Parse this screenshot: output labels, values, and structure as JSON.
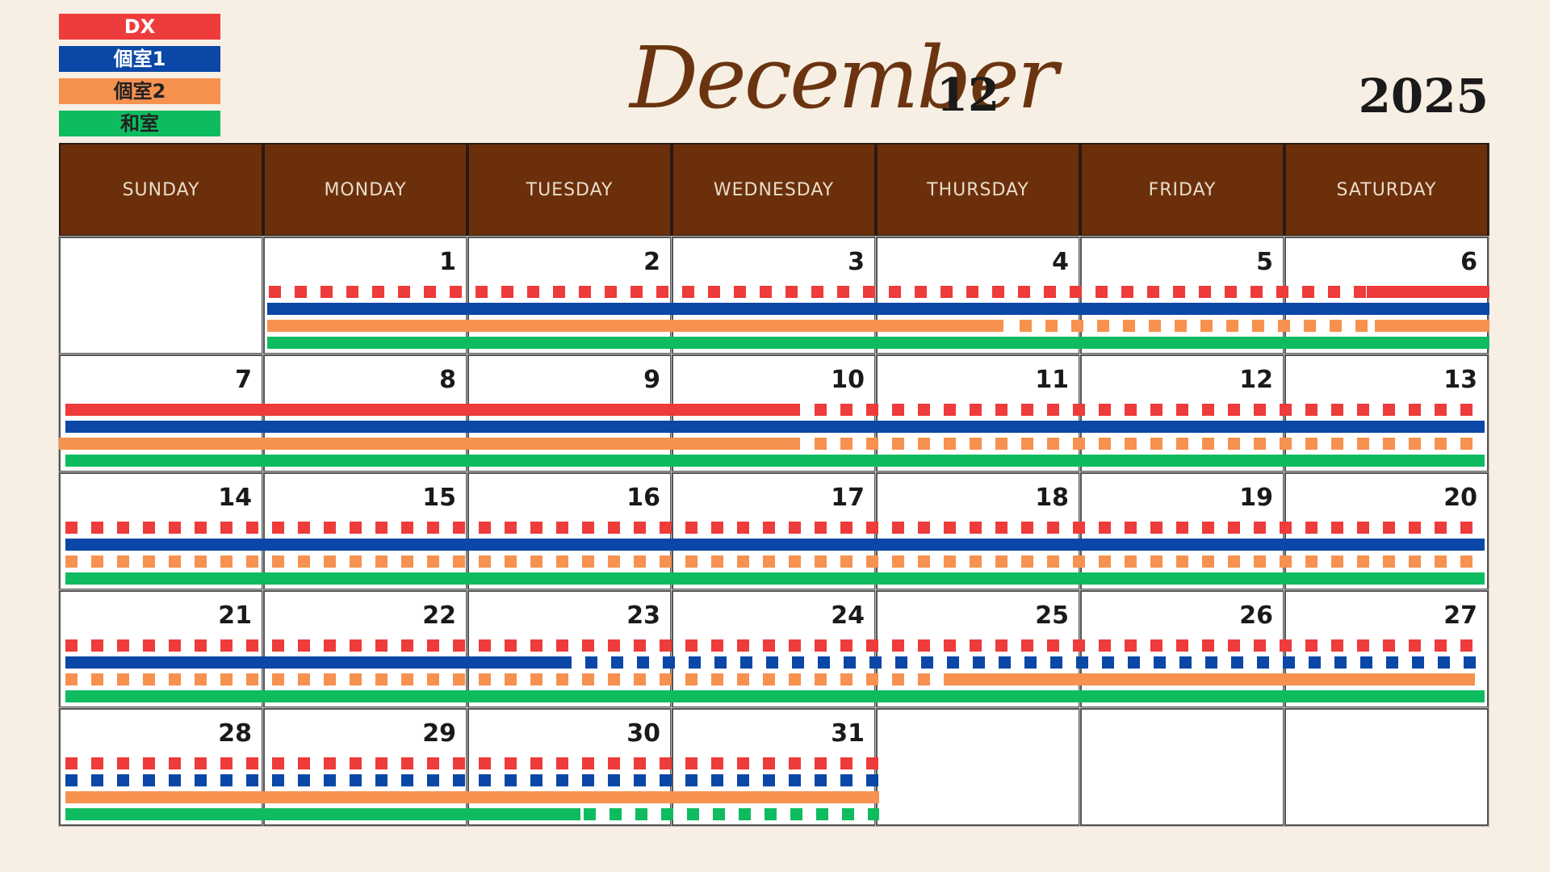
{
  "legend": [
    {
      "label": "DX",
      "color": "#ee3b3b"
    },
    {
      "label": "個室1",
      "color": "#0a47a6"
    },
    {
      "label": "個室2",
      "color": "#f7914f"
    },
    {
      "label": "和室",
      "color": "#0ebc5f"
    }
  ],
  "header": {
    "month_name": "December",
    "month_number": "12",
    "year": "2025"
  },
  "weekdays": [
    "SUNDAY",
    "MONDAY",
    "TUESDAY",
    "WEDNESDAY",
    "THURSDAY",
    "FRIDAY",
    "SATURDAY"
  ],
  "weeks": [
    [
      "",
      "1",
      "2",
      "3",
      "4",
      "5",
      "6"
    ],
    [
      "7",
      "8",
      "9",
      "10",
      "11",
      "12",
      "13"
    ],
    [
      "14",
      "15",
      "16",
      "17",
      "18",
      "19",
      "20"
    ],
    [
      "21",
      "22",
      "23",
      "24",
      "25",
      "26",
      "27"
    ],
    [
      "28",
      "29",
      "30",
      "31",
      "",
      "",
      ""
    ]
  ]
}
